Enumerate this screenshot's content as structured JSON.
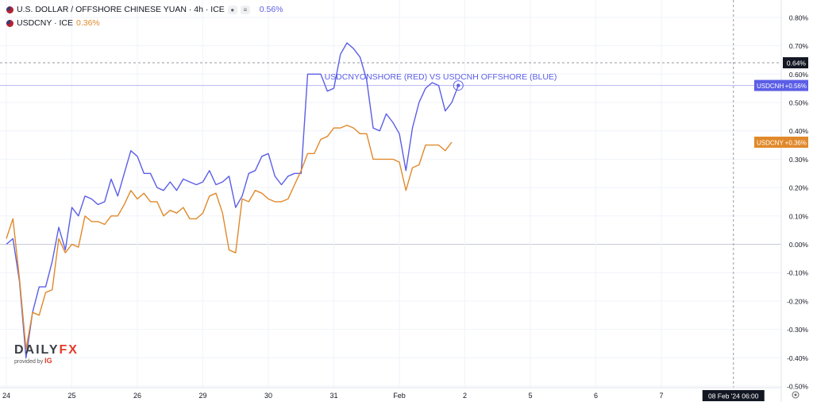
{
  "legend": {
    "main_title": "U.S. DOLLAR / OFFSHORE CHINESE YUAN · 4h · ICE",
    "main_change": "0.56%",
    "second_title": "USDCNY · ICE",
    "second_change": "0.36%"
  },
  "logo": {
    "word": "DAILY",
    "word_fx": "FX",
    "provided_by": "provided by",
    "ig": "IG"
  },
  "colors": {
    "usdcnh": "#5b5ee6",
    "usdcny": "#e0892b",
    "grid": "#f0f3fa",
    "axis_text": "#131722",
    "zero_line": "#c8ccd6",
    "dashed": "#9598a1"
  },
  "chart_data": {
    "type": "line",
    "title": "",
    "annotation": "USDCNYONSHORE (RED) VS USDCNH OFFSHORE (BLUE)",
    "xlabel": "",
    "ylabel": "",
    "ylim": [
      -0.52,
      0.82
    ],
    "y_ticks": [
      "0.80%",
      "0.70%",
      "0.60%",
      "0.50%",
      "0.40%",
      "0.30%",
      "0.20%",
      "0.10%",
      "0.00%",
      "-0.10%",
      "-0.20%",
      "-0.30%",
      "-0.40%",
      "-0.50%"
    ],
    "y_tick_values": [
      0.8,
      0.7,
      0.6,
      0.5,
      0.4,
      0.3,
      0.2,
      0.1,
      0.0,
      -0.1,
      -0.2,
      -0.3,
      -0.4,
      -0.5
    ],
    "x_ticks": [
      {
        "label": "24",
        "x": 0
      },
      {
        "label": "25",
        "x": 10
      },
      {
        "label": "26",
        "x": 20
      },
      {
        "label": "29",
        "x": 30
      },
      {
        "label": "30",
        "x": 40
      },
      {
        "label": "31",
        "x": 50
      },
      {
        "label": "Feb",
        "x": 60
      },
      {
        "label": "2",
        "x": 70
      },
      {
        "label": "5",
        "x": 80
      },
      {
        "label": "6",
        "x": 90
      },
      {
        "label": "7",
        "x": 100
      }
    ],
    "x_range": [
      -0.8,
      123
    ],
    "crosshair": {
      "x_label": "08 Feb '24  06:00",
      "x": 111,
      "y_label": "0.64%",
      "y": 0.64
    },
    "series": [
      {
        "name": "USDCNH",
        "label": "USDCNH",
        "last": "+0.56%",
        "color": "#5b5ee6",
        "values": [
          0.0,
          0.02,
          -0.13,
          -0.4,
          -0.24,
          -0.15,
          -0.15,
          -0.06,
          0.06,
          -0.02,
          0.13,
          0.1,
          0.17,
          0.16,
          0.14,
          0.15,
          0.23,
          0.17,
          0.25,
          0.33,
          0.31,
          0.25,
          0.25,
          0.2,
          0.19,
          0.22,
          0.19,
          0.23,
          0.22,
          0.21,
          0.22,
          0.26,
          0.21,
          0.22,
          0.24,
          0.13,
          0.17,
          0.25,
          0.26,
          0.31,
          0.32,
          0.24,
          0.21,
          0.24,
          0.25,
          0.25,
          0.6,
          0.6,
          0.6,
          0.54,
          0.55,
          0.67,
          0.71,
          0.69,
          0.66,
          0.58,
          0.41,
          0.4,
          0.46,
          0.43,
          0.39,
          0.26,
          0.41,
          0.5,
          0.55,
          0.57,
          0.56,
          0.47,
          0.5,
          0.56
        ]
      },
      {
        "name": "USDCNY",
        "label": "USDCNY",
        "last": "+0.36%",
        "color": "#e0892b",
        "values": [
          0.02,
          0.09,
          -0.12,
          -0.37,
          -0.24,
          -0.25,
          -0.17,
          -0.16,
          0.02,
          -0.03,
          0.0,
          -0.01,
          0.1,
          0.08,
          0.08,
          0.07,
          0.1,
          0.1,
          0.14,
          0.19,
          0.16,
          0.18,
          0.15,
          0.15,
          0.1,
          0.12,
          0.11,
          0.13,
          0.09,
          0.09,
          0.11,
          0.17,
          0.18,
          0.11,
          -0.02,
          -0.03,
          0.16,
          0.15,
          0.19,
          0.18,
          0.16,
          0.15,
          0.15,
          0.16,
          0.21,
          0.26,
          0.32,
          0.32,
          0.37,
          0.38,
          0.41,
          0.41,
          0.42,
          0.41,
          0.39,
          0.39,
          0.3,
          0.3,
          0.3,
          0.3,
          0.29,
          0.19,
          0.27,
          0.28,
          0.35,
          0.35,
          0.35,
          0.33,
          0.36
        ]
      }
    ]
  }
}
